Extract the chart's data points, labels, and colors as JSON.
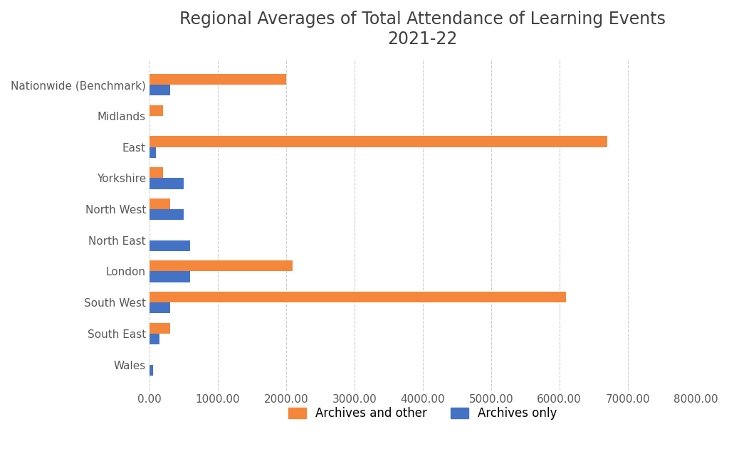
{
  "title": "Regional Averages of Total Attendance of Learning Events\n2021-22",
  "categories": [
    "Nationwide (Benchmark)",
    "Midlands",
    "East",
    "Yorkshire",
    "North West",
    "North East",
    "London",
    "South West",
    "South East",
    "Wales"
  ],
  "archives_and_other": [
    2000,
    200,
    6700,
    200,
    300,
    0,
    2100,
    6100,
    300,
    0
  ],
  "archives_only": [
    300,
    0,
    100,
    500,
    500,
    600,
    600,
    300,
    150,
    50
  ],
  "color_archives_and_other": "#F4873C",
  "color_archives_only": "#4472C4",
  "xlim": [
    0,
    8000
  ],
  "xticks": [
    0,
    1000,
    2000,
    3000,
    4000,
    5000,
    6000,
    7000,
    8000
  ],
  "background_color": "#FFFFFF",
  "title_fontsize": 17,
  "tick_fontsize": 11,
  "legend_fontsize": 12,
  "bar_height": 0.35,
  "figsize": [
    10.24,
    6.48
  ]
}
